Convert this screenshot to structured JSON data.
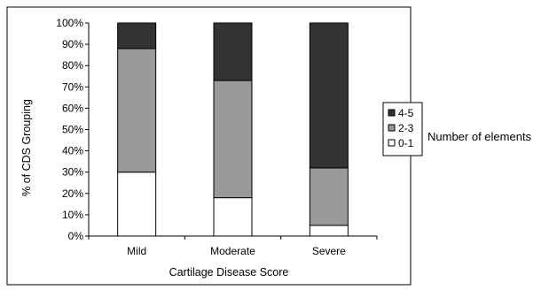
{
  "chart_data": {
    "type": "bar",
    "stacked": true,
    "percent": true,
    "categories": [
      "Mild",
      "Moderate",
      "Severe"
    ],
    "series": [
      {
        "name": "0-1",
        "values": [
          30,
          18,
          5
        ],
        "color": "#ffffff"
      },
      {
        "name": "2-3",
        "values": [
          58,
          55,
          27
        ],
        "color": "#999999"
      },
      {
        "name": "4-5",
        "values": [
          12,
          27,
          68
        ],
        "color": "#333333"
      }
    ],
    "y_ticks": [
      "0%",
      "10%",
      "20%",
      "30%",
      "40%",
      "50%",
      "60%",
      "70%",
      "80%",
      "90%",
      "100%"
    ],
    "ylim": [
      0,
      100
    ],
    "xlabel": "Cartilage Disease Score",
    "ylabel": "% of CDS Grouping",
    "legend_position": "right",
    "legend_order": [
      "4-5",
      "2-3",
      "0-1"
    ],
    "grid": false
  },
  "side_note": "Number of elements"
}
